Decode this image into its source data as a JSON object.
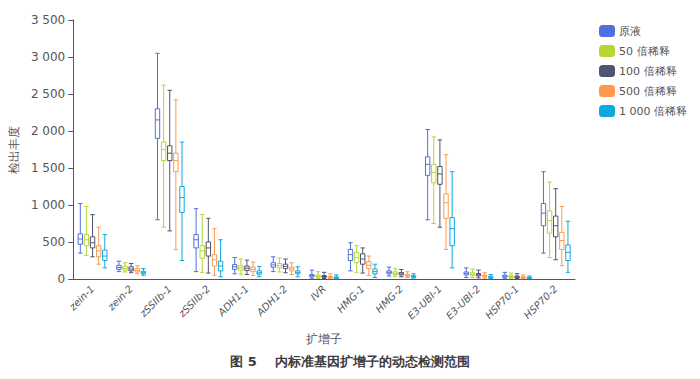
{
  "chart_data": {
    "type": "boxplot",
    "title": "图 5    内标准基因扩增子的动态检测范围",
    "x_label": "扩增子",
    "y_label": "检出丰度",
    "categories": [
      "zein-1",
      "zein-2",
      "zSSIIb-1",
      "zSSIIb-2",
      "ADH1-1",
      "ADH1-2",
      "IVR",
      "HMG-1",
      "HMG-2",
      "E3-UBI-1",
      "E3-UBI-2",
      "HSP70-1",
      "HSP70-2"
    ],
    "series": [
      {
        "name": "原液",
        "values": [
          [
            350,
            470,
            540,
            610,
            1020
          ],
          [
            100,
            130,
            155,
            185,
            240
          ],
          [
            800,
            1900,
            2150,
            2300,
            3050
          ],
          [
            100,
            420,
            530,
            600,
            950
          ],
          [
            70,
            130,
            165,
            195,
            290
          ],
          [
            100,
            160,
            190,
            220,
            300
          ],
          [
            10,
            30,
            45,
            60,
            120
          ],
          [
            110,
            250,
            330,
            400,
            490
          ],
          [
            40,
            70,
            90,
            110,
            160
          ],
          [
            800,
            1400,
            1550,
            1650,
            2020
          ],
          [
            20,
            55,
            75,
            95,
            150
          ],
          [
            10,
            25,
            38,
            52,
            90
          ],
          [
            350,
            720,
            890,
            1020,
            1450
          ]
        ]
      },
      {
        "name": "50 倍稀释",
        "values": [
          [
            320,
            450,
            530,
            600,
            980
          ],
          [
            95,
            120,
            145,
            175,
            220
          ],
          [
            700,
            1600,
            1750,
            1850,
            2620
          ],
          [
            90,
            280,
            380,
            450,
            870
          ],
          [
            65,
            120,
            150,
            180,
            270
          ],
          [
            95,
            150,
            180,
            210,
            285
          ],
          [
            8,
            25,
            38,
            52,
            100
          ],
          [
            90,
            220,
            290,
            360,
            450
          ],
          [
            35,
            60,
            78,
            96,
            140
          ],
          [
            750,
            1300,
            1440,
            1550,
            1920
          ],
          [
            18,
            48,
            66,
            84,
            135
          ],
          [
            8,
            22,
            33,
            45,
            80
          ],
          [
            290,
            620,
            790,
            920,
            1310
          ]
        ]
      },
      {
        "name": "100 倍稀释",
        "values": [
          [
            300,
            420,
            490,
            570,
            870
          ],
          [
            85,
            110,
            135,
            165,
            210
          ],
          [
            650,
            1600,
            1700,
            1800,
            2550
          ],
          [
            80,
            310,
            420,
            500,
            820
          ],
          [
            60,
            115,
            145,
            175,
            255
          ],
          [
            85,
            140,
            170,
            200,
            270
          ],
          [
            7,
            22,
            34,
            46,
            90
          ],
          [
            80,
            200,
            270,
            340,
            420
          ],
          [
            30,
            55,
            70,
            87,
            128
          ],
          [
            700,
            1280,
            1420,
            1520,
            1880
          ],
          [
            15,
            42,
            58,
            74,
            120
          ],
          [
            7,
            19,
            29,
            40,
            72
          ],
          [
            260,
            570,
            720,
            850,
            1220
          ]
        ]
      },
      {
        "name": "500 倍稀释",
        "values": [
          [
            200,
            300,
            380,
            450,
            700
          ],
          [
            70,
            95,
            115,
            140,
            180
          ],
          [
            400,
            1450,
            1600,
            1700,
            2420
          ],
          [
            50,
            175,
            260,
            330,
            680
          ],
          [
            50,
            100,
            130,
            160,
            230
          ],
          [
            60,
            110,
            135,
            160,
            220
          ],
          [
            5,
            15,
            24,
            35,
            70
          ],
          [
            50,
            140,
            185,
            235,
            310
          ],
          [
            20,
            38,
            50,
            63,
            98
          ],
          [
            400,
            820,
            1030,
            1150,
            1680
          ],
          [
            10,
            28,
            40,
            52,
            85
          ],
          [
            5,
            13,
            21,
            30,
            55
          ],
          [
            180,
            400,
            520,
            630,
            980
          ]
        ]
      },
      {
        "name": "1 000 倍稀释",
        "values": [
          [
            150,
            250,
            310,
            390,
            600
          ],
          [
            50,
            70,
            85,
            105,
            140
          ],
          [
            250,
            900,
            1100,
            1250,
            1850
          ],
          [
            30,
            110,
            175,
            240,
            530
          ],
          [
            30,
            65,
            85,
            110,
            170
          ],
          [
            30,
            70,
            90,
            110,
            165
          ],
          [
            3,
            10,
            18,
            28,
            55
          ],
          [
            20,
            70,
            100,
            135,
            200
          ],
          [
            12,
            25,
            34,
            44,
            70
          ],
          [
            150,
            450,
            680,
            830,
            1450
          ],
          [
            5,
            16,
            25,
            35,
            60
          ],
          [
            3,
            8,
            14,
            21,
            40
          ],
          [
            90,
            250,
            360,
            460,
            780
          ]
        ]
      }
    ],
    "ylim": [
      0,
      3500
    ],
    "yticks": [
      0,
      500,
      {
        "value": 1000,
        "label": "1 000"
      },
      {
        "value": 1500,
        "label": "1 500"
      },
      {
        "value": 2000,
        "label": "2 000"
      },
      {
        "value": 2500,
        "label": "2 500"
      },
      {
        "value": 3000,
        "label": "3 000"
      },
      {
        "value": 3500,
        "label": "3 500"
      }
    ],
    "grid": false,
    "legend": "right"
  }
}
